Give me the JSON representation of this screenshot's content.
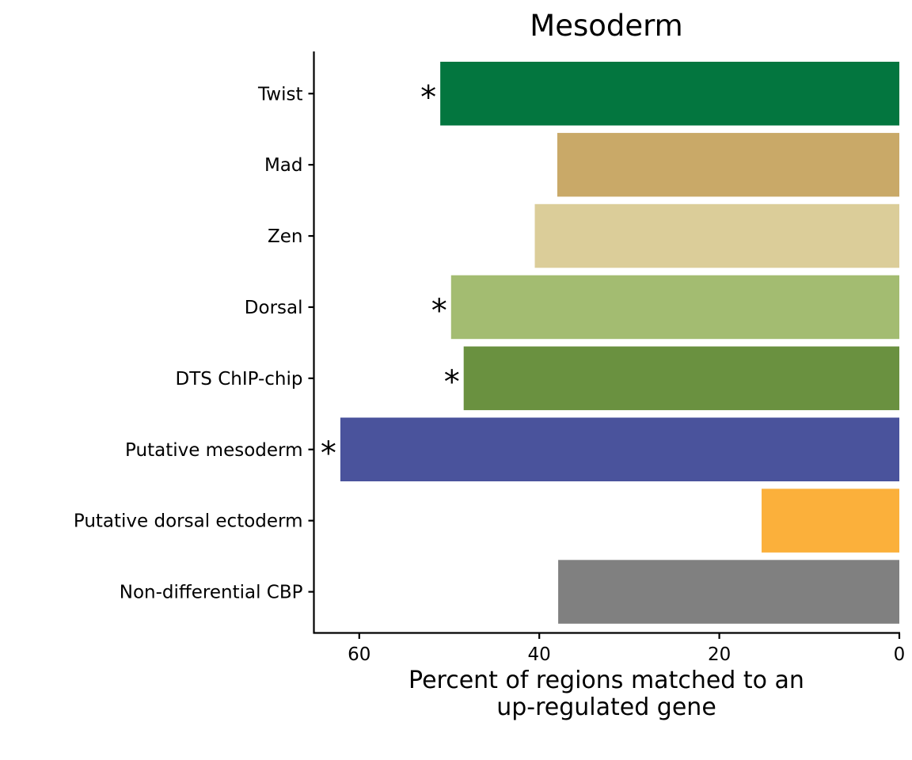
{
  "chart_data": {
    "type": "bar",
    "orientation": "horizontal",
    "title": "Mesoderm",
    "xlabel": [
      "Percent of regions matched to an",
      "up-regulated gene"
    ],
    "ylabel": "",
    "xlim": [
      0,
      65
    ],
    "x_reversed": true,
    "xticks": [
      60,
      40,
      20,
      0
    ],
    "grid": false,
    "categories": [
      "Twist",
      "Mad",
      "Zen",
      "Dorsal",
      "DTS ChIP-chip",
      "Putative mesoderm",
      "Putative dorsal ectoderm",
      "Non-differential CBP"
    ],
    "values": [
      51.0,
      38.0,
      40.5,
      49.8,
      48.4,
      62.1,
      15.3,
      37.9
    ],
    "colors": [
      "#03763f",
      "#c9a968",
      "#dbcd99",
      "#a3bc71",
      "#6a9140",
      "#4a539c",
      "#fbb03b",
      "#808080"
    ],
    "annotations": [
      "*",
      "",
      "",
      "*",
      "*",
      "*",
      "",
      ""
    ]
  }
}
